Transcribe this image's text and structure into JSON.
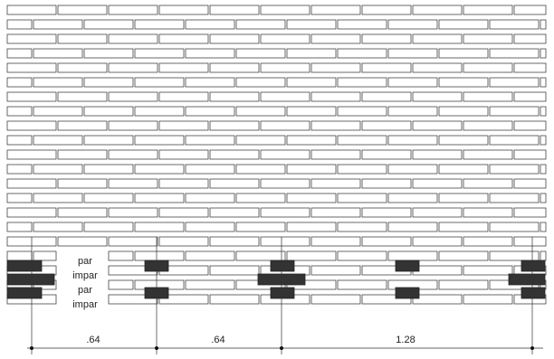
{
  "row_labels": [
    "par",
    "impar",
    "par",
    "impar"
  ],
  "dimensions": [
    ".64",
    ".64",
    "1.28"
  ]
}
